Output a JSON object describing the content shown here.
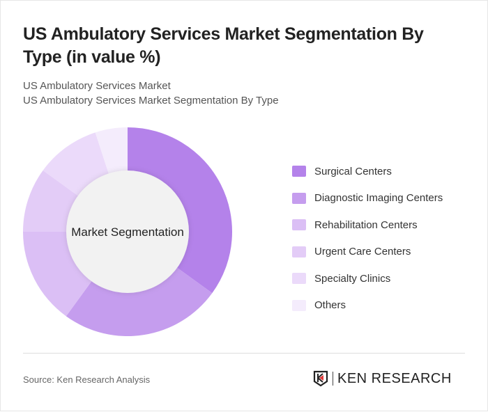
{
  "title": "US Ambulatory Services Market Segmentation By Type (in value %)",
  "subtitle1": "US Ambulatory Services Market",
  "subtitle2": "US Ambulatory Services Market Segmentation By Type",
  "source": "Source: Ken Research Analysis",
  "logo": "KEN RESEARCH",
  "chart_data": {
    "type": "pie",
    "variant": "donut",
    "center_label": "Market Segmentation",
    "legend_position": "right",
    "categories": [
      "Surgical Centers",
      "Diagnostic Imaging Centers",
      "Rehabilitation Centers",
      "Urgent Care Centers",
      "Specialty Clinics",
      "Others"
    ],
    "values": [
      35,
      25,
      15,
      10,
      10,
      5
    ],
    "colors": [
      "#b482ea",
      "#c59dee",
      "#dbbff5",
      "#e3ccf7",
      "#ebdafa",
      "#f4ecfc"
    ]
  }
}
